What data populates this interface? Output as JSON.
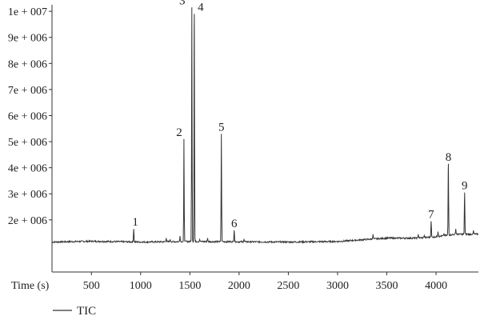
{
  "chart_data": {
    "type": "line",
    "xlabel": "Time (s)",
    "xlim": [
      100,
      4430
    ],
    "ylim": [
      0,
      10250000
    ],
    "x_ticks": [
      500,
      1000,
      1500,
      2000,
      2500,
      3000,
      3500,
      4000
    ],
    "x_tick_labels": [
      "500",
      "1000",
      "1500",
      "2000",
      "2500",
      "3000",
      "3500",
      "4000"
    ],
    "y_ticks": [
      2000000,
      3000000,
      4000000,
      5000000,
      6000000,
      7000000,
      8000000,
      9000000,
      10000000
    ],
    "y_tick_labels": [
      "2e + 006",
      "3e + 006",
      "4e + 006",
      "5e + 006",
      "6e + 006",
      "7e + 006",
      "8e + 006",
      "9e + 006",
      "1e + 007"
    ],
    "legend": {
      "position": "bottom-left"
    },
    "grid": false,
    "series": [
      {
        "name": "TIC",
        "color": "#333333",
        "baseline": [
          [
            100,
            1150000
          ],
          [
            500,
            1180000
          ],
          [
            1000,
            1150000
          ],
          [
            1500,
            1170000
          ],
          [
            2000,
            1160000
          ],
          [
            2500,
            1150000
          ],
          [
            3000,
            1170000
          ],
          [
            3300,
            1250000
          ],
          [
            3500,
            1300000
          ],
          [
            3800,
            1300000
          ],
          [
            4000,
            1350000
          ],
          [
            4200,
            1450000
          ],
          [
            4430,
            1450000
          ]
        ],
        "peaks": [
          {
            "label": "1",
            "x": 930,
            "y": 1650000
          },
          {
            "label": "2",
            "x": 1440,
            "y": 5100000
          },
          {
            "label": "3",
            "x": 1520,
            "y": 10150000
          },
          {
            "label": "4",
            "x": 1545,
            "y": 9900000
          },
          {
            "label": "5",
            "x": 1820,
            "y": 5300000
          },
          {
            "label": "6",
            "x": 1950,
            "y": 1600000
          },
          {
            "label": "7",
            "x": 3950,
            "y": 1950000
          },
          {
            "label": "8",
            "x": 4125,
            "y": 4150000
          },
          {
            "label": "9",
            "x": 4290,
            "y": 3050000
          }
        ],
        "minor_peaks": [
          [
            1260,
            1300000
          ],
          [
            1300,
            1250000
          ],
          [
            1400,
            1380000
          ],
          [
            1600,
            1250000
          ],
          [
            1680,
            1300000
          ],
          [
            2050,
            1250000
          ],
          [
            3360,
            1450000
          ],
          [
            3820,
            1450000
          ],
          [
            3880,
            1400000
          ],
          [
            4020,
            1550000
          ],
          [
            4080,
            1480000
          ],
          [
            4200,
            1650000
          ],
          [
            4380,
            1600000
          ]
        ]
      }
    ]
  }
}
